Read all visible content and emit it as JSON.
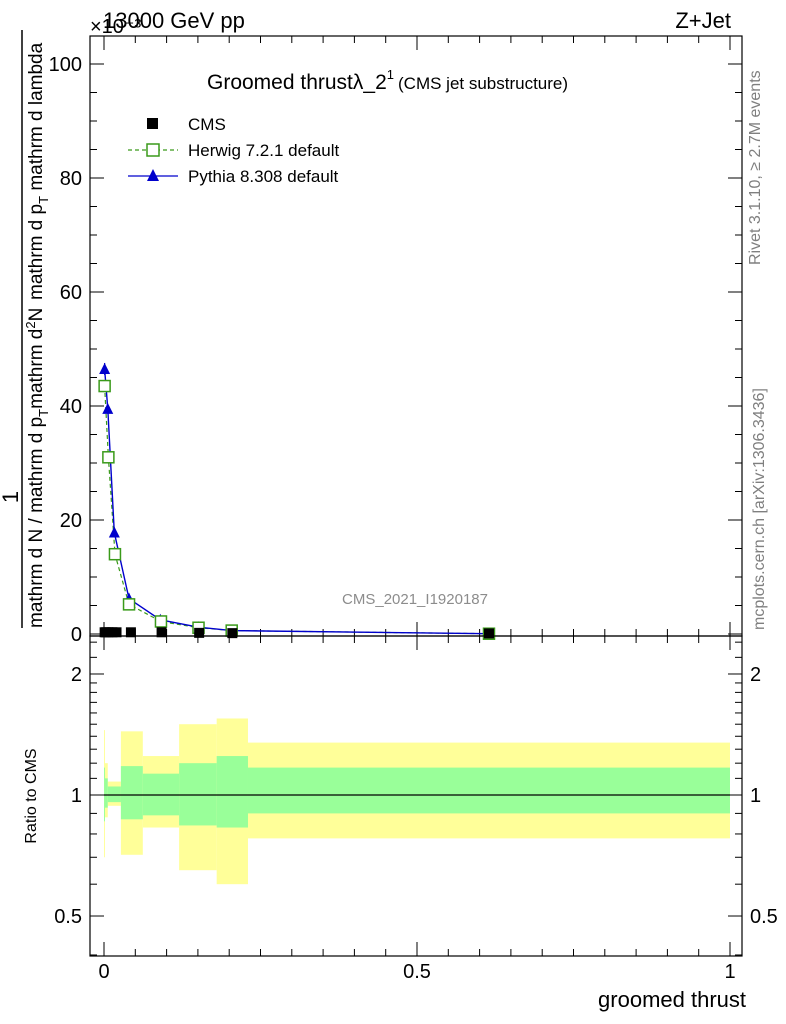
{
  "header": {
    "left": "13000 GeV pp",
    "right": "Z+Jet",
    "exponent": "×10⁻³"
  },
  "side_labels": {
    "rivet": "Rivet 3.1.10, ≥ 2.7M events",
    "mcplots": "mcplots.cern.ch [arXiv:1306.3436]"
  },
  "colors": {
    "cms": "#000000",
    "herwig": "#3a9a1a",
    "pythia": "#0000cc",
    "band_inner": "#99ff99",
    "band_outer": "#ffff99"
  },
  "chart_data": [
    {
      "type": "line",
      "title_main": "Groomed thrust",
      "title_lambda": "λ_2",
      "title_sup": "1",
      "title_note": "(CMS jet substructure)",
      "watermark": "CMS_2021_I1920187",
      "ylabel": {
        "one": "1",
        "den": "mathrm d N / mathrm d p",
        "den_sub": "T",
        "num": "mathrm d",
        "num_sup": "2",
        "num_tail": "N",
        "den2": "mathrm d p",
        "den2_sub": "T",
        "den2_tail": " mathrm d lambda"
      },
      "xlim": [
        0,
        1
      ],
      "ylim": [
        0,
        105
      ],
      "y_ticks": [
        0,
        20,
        40,
        60,
        80,
        100
      ],
      "y_tick_labels": [
        "0",
        "20",
        "40",
        "60",
        "80",
        "100"
      ],
      "legend": {
        "position": "top-left",
        "entries": [
          "CMS",
          "Herwig 7.2.1 default",
          "Pythia 8.308 default"
        ]
      },
      "series": [
        {
          "name": "CMS",
          "marker": "square",
          "x": [
            0.001,
            0.0035,
            0.007,
            0.0135,
            0.02,
            0.043,
            0.092,
            0.152,
            0.205,
            0.615
          ],
          "y": [
            0.3,
            0.3,
            0.3,
            0.3,
            0.3,
            0.3,
            0.3,
            0.2,
            0.15,
            0.1
          ]
        },
        {
          "name": "Herwig 7.2.1 default",
          "marker": "open-square",
          "x": [
            0.001,
            0.007,
            0.0175,
            0.04,
            0.091,
            0.151,
            0.204,
            0.615
          ],
          "y": [
            43.5,
            31.0,
            14.0,
            5.2,
            2.2,
            1.1,
            0.6,
            0.05
          ]
        },
        {
          "name": "Pythia 8.308 default",
          "marker": "triangle",
          "x": [
            0.001,
            0.006,
            0.0165,
            0.04,
            0.09,
            0.151,
            0.204,
            0.615
          ],
          "y": [
            46.5,
            39.5,
            17.8,
            6.2,
            2.5,
            1.2,
            0.6,
            0.05
          ]
        }
      ]
    },
    {
      "type": "area",
      "ylabel": "Ratio to CMS",
      "xlabel": "groomed thrust",
      "xlim": [
        0,
        1
      ],
      "ylim": [
        0.4,
        2.4
      ],
      "log_scale": true,
      "x_ticks": [
        0,
        0.5,
        1
      ],
      "x_tick_labels": [
        "0",
        "0.5",
        "1"
      ],
      "y_ticks": [
        0.5,
        1,
        2
      ],
      "y_tick_labels": [
        "0.5",
        "1",
        "2"
      ],
      "reference_line": 1,
      "bins": [
        {
          "x0": 0.0,
          "x1": 0.0015,
          "outer": [
            0.7,
            1.45
          ],
          "inner": [
            0.86,
            1.17
          ]
        },
        {
          "x0": 0.0015,
          "x1": 0.006,
          "outer": [
            0.88,
            1.2
          ],
          "inner": [
            0.93,
            1.1
          ]
        },
        {
          "x0": 0.006,
          "x1": 0.027,
          "outer": [
            0.94,
            1.08
          ],
          "inner": [
            0.96,
            1.05
          ]
        },
        {
          "x0": 0.027,
          "x1": 0.062,
          "outer": [
            0.71,
            1.44
          ],
          "inner": [
            0.87,
            1.18
          ]
        },
        {
          "x0": 0.062,
          "x1": 0.12,
          "outer": [
            0.83,
            1.25
          ],
          "inner": [
            0.89,
            1.13
          ]
        },
        {
          "x0": 0.12,
          "x1": 0.18,
          "outer": [
            0.65,
            1.5
          ],
          "inner": [
            0.84,
            1.2
          ]
        },
        {
          "x0": 0.18,
          "x1": 0.23,
          "outer": [
            0.6,
            1.55
          ],
          "inner": [
            0.83,
            1.25
          ]
        },
        {
          "x0": 0.23,
          "x1": 1.0,
          "outer": [
            0.78,
            1.35
          ],
          "inner": [
            0.9,
            1.17
          ]
        }
      ]
    }
  ]
}
